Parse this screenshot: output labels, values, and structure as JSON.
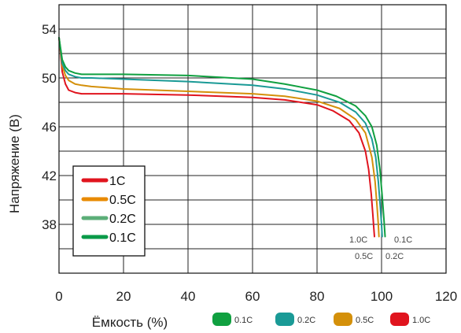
{
  "chart_data": {
    "type": "line",
    "xlabel": "Ёмкость (%)",
    "ylabel": "Напряжение (В)",
    "xlim": [
      0,
      120
    ],
    "ylim": [
      34,
      56
    ],
    "xticks": [
      "0",
      "20",
      "40",
      "60",
      "80",
      "100",
      "120"
    ],
    "yticks": [
      "54",
      "50",
      "46",
      "42",
      "38"
    ],
    "ytick_values": [
      54,
      50,
      46,
      42,
      38
    ],
    "grid": true,
    "legend": {
      "placement": "lower-left",
      "entries": [
        "1C",
        "0.5C",
        "0.2C",
        "0.1C"
      ]
    },
    "bottom_legend": [
      "0.1C",
      "0.2C",
      "0.5C",
      "1.0C"
    ],
    "annotations": [
      "1.0C",
      "0.1C",
      "0.5C",
      "0.2C"
    ],
    "series": [
      {
        "name": "1C",
        "color": "#e0141e",
        "x": [
          0,
          0.5,
          1,
          2,
          3,
          5,
          7,
          10,
          20,
          40,
          60,
          70,
          80,
          85,
          90,
          93,
          95,
          96,
          96.8,
          97.3,
          97.6,
          97.8
        ],
        "y": [
          53.3,
          52.0,
          50.5,
          49.5,
          49.0,
          48.8,
          48.7,
          48.7,
          48.7,
          48.6,
          48.4,
          48.2,
          47.8,
          47.3,
          46.5,
          45.5,
          44.0,
          42.5,
          40.5,
          38.8,
          37.7,
          37.0
        ]
      },
      {
        "name": "0.5C",
        "color": "#d4900a",
        "x": [
          0,
          0.5,
          1,
          2,
          3,
          5,
          7,
          10,
          20,
          40,
          60,
          70,
          80,
          87,
          92,
          95,
          97,
          98,
          98.6,
          99,
          99.2
        ],
        "y": [
          53.3,
          52.2,
          51.0,
          50.2,
          49.8,
          49.5,
          49.4,
          49.3,
          49.1,
          48.9,
          48.7,
          48.5,
          48.1,
          47.5,
          46.6,
          45.5,
          43.5,
          41.5,
          39.5,
          38.0,
          37.0
        ]
      },
      {
        "name": "0.2C",
        "color": "#1a9a96",
        "x": [
          0,
          0.5,
          1,
          2,
          3,
          5,
          7,
          10,
          20,
          40,
          60,
          70,
          80,
          87,
          92,
          95,
          97,
          98.2,
          99,
          99.6,
          100,
          100.2
        ],
        "y": [
          53.3,
          52.3,
          51.2,
          50.6,
          50.3,
          50.1,
          50.0,
          50.0,
          49.9,
          49.7,
          49.4,
          49.1,
          48.6,
          48.0,
          47.2,
          46.3,
          45.0,
          43.5,
          41.5,
          39.5,
          38.0,
          37.0
        ]
      },
      {
        "name": "0.1C",
        "color": "#10a040",
        "x": [
          0,
          0.5,
          1,
          2,
          3,
          5,
          7,
          10,
          20,
          40,
          60,
          70,
          80,
          86,
          92,
          95,
          97,
          98.5,
          99.5,
          100.3,
          100.8,
          101.1
        ],
        "y": [
          53.3,
          52.4,
          51.5,
          50.9,
          50.6,
          50.4,
          50.3,
          50.3,
          50.3,
          50.2,
          49.9,
          49.5,
          49.0,
          48.5,
          47.7,
          46.9,
          46.0,
          44.5,
          42.5,
          40.0,
          38.2,
          37.0
        ]
      }
    ]
  },
  "legend_swatch_colors": {
    "0.1C": "#10a040",
    "0.2C": "#1a9a96",
    "0.5C": "#d4900a",
    "1.0C": "#e0141e"
  },
  "legend_line_colors": {
    "1C": "#e0141e",
    "0.5C": "#e88a00",
    "0.2C": "#5cae78",
    "0.1C": "#0a9a48"
  }
}
